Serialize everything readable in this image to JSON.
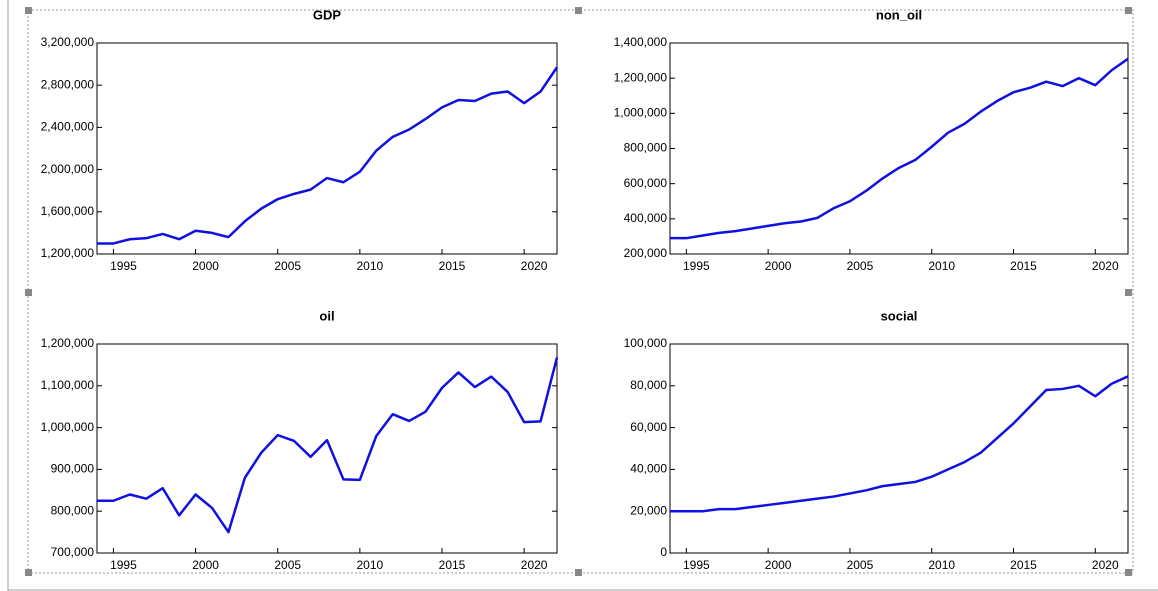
{
  "chart_data": [
    {
      "type": "line",
      "title": "GDP",
      "color": "#1010e0",
      "x": [
        1994,
        1995,
        1996,
        1997,
        1998,
        1999,
        2000,
        2001,
        2002,
        2003,
        2004,
        2005,
        2006,
        2007,
        2008,
        2009,
        2010,
        2011,
        2012,
        2013,
        2014,
        2015,
        2016,
        2017,
        2018,
        2019,
        2020,
        2021,
        2022
      ],
      "values": [
        1300000,
        1300000,
        1340000,
        1350000,
        1390000,
        1340000,
        1420000,
        1400000,
        1360000,
        1510000,
        1630000,
        1720000,
        1770000,
        1810000,
        1920000,
        1880000,
        1980000,
        2180000,
        2310000,
        2380000,
        2480000,
        2590000,
        2660000,
        2650000,
        2720000,
        2740000,
        2630000,
        2740000,
        2970000
      ],
      "xlim": [
        1994,
        2022
      ],
      "xticks": [
        1995,
        2000,
        2005,
        2010,
        2015,
        2020
      ],
      "ylim": [
        1200000,
        3200000
      ],
      "yticks": [
        {
          "value": 1200000,
          "label": "1,200,000"
        },
        {
          "value": 1600000,
          "label": "1,600,000"
        },
        {
          "value": 2000000,
          "label": "2,000,000"
        },
        {
          "value": 2400000,
          "label": "2,400,000"
        },
        {
          "value": 2800000,
          "label": "2,800,000"
        },
        {
          "value": 3200000,
          "label": "3,200,000"
        }
      ]
    },
    {
      "type": "line",
      "title": "non_oil",
      "color": "#1010e0",
      "x": [
        1994,
        1995,
        1996,
        1997,
        1998,
        1999,
        2000,
        2001,
        2002,
        2003,
        2004,
        2005,
        2006,
        2007,
        2008,
        2009,
        2010,
        2011,
        2012,
        2013,
        2014,
        2015,
        2016,
        2017,
        2018,
        2019,
        2020,
        2021,
        2022
      ],
      "values": [
        290000,
        290000,
        305000,
        320000,
        330000,
        345000,
        360000,
        375000,
        385000,
        405000,
        460000,
        500000,
        560000,
        630000,
        690000,
        735000,
        810000,
        890000,
        940000,
        1010000,
        1070000,
        1120000,
        1145000,
        1180000,
        1155000,
        1200000,
        1160000,
        1245000,
        1310000
      ],
      "xlim": [
        1994,
        2022
      ],
      "xticks": [
        1995,
        2000,
        2005,
        2010,
        2015,
        2020
      ],
      "ylim": [
        200000,
        1400000
      ],
      "yticks": [
        {
          "value": 200000,
          "label": "200,000"
        },
        {
          "value": 400000,
          "label": "400,000"
        },
        {
          "value": 600000,
          "label": "600,000"
        },
        {
          "value": 800000,
          "label": "800,000"
        },
        {
          "value": 1000000,
          "label": "1,000,000"
        },
        {
          "value": 1200000,
          "label": "1,200,000"
        },
        {
          "value": 1400000,
          "label": "1,400,000"
        }
      ]
    },
    {
      "type": "line",
      "title": "oil",
      "color": "#1010e0",
      "x": [
        1994,
        1995,
        1996,
        1997,
        1998,
        1999,
        2000,
        2001,
        2002,
        2003,
        2004,
        2005,
        2006,
        2007,
        2008,
        2009,
        2010,
        2011,
        2012,
        2013,
        2014,
        2015,
        2016,
        2017,
        2018,
        2019,
        2020,
        2021,
        2022
      ],
      "values": [
        825000,
        825000,
        840000,
        830000,
        855000,
        790000,
        840000,
        808000,
        750000,
        880000,
        940000,
        982000,
        968000,
        930000,
        970000,
        876000,
        875000,
        980000,
        1032000,
        1016000,
        1038000,
        1095000,
        1132000,
        1097000,
        1122000,
        1085000,
        1013000,
        1015000,
        1168000
      ],
      "xlim": [
        1994,
        2022
      ],
      "xticks": [
        1995,
        2000,
        2005,
        2010,
        2015,
        2020
      ],
      "ylim": [
        700000,
        1200000
      ],
      "yticks": [
        {
          "value": 700000,
          "label": "700,000"
        },
        {
          "value": 800000,
          "label": "800,000"
        },
        {
          "value": 900000,
          "label": "900,000"
        },
        {
          "value": 1000000,
          "label": "1,000,000"
        },
        {
          "value": 1100000,
          "label": "1,100,000"
        },
        {
          "value": 1200000,
          "label": "1,200,000"
        }
      ]
    },
    {
      "type": "line",
      "title": "social",
      "color": "#1010e0",
      "x": [
        1994,
        1995,
        1996,
        1997,
        1998,
        1999,
        2000,
        2001,
        2002,
        2003,
        2004,
        2005,
        2006,
        2007,
        2008,
        2009,
        2010,
        2011,
        2012,
        2013,
        2014,
        2015,
        2016,
        2017,
        2018,
        2019,
        2020,
        2021,
        2022
      ],
      "values": [
        20000,
        20000,
        20000,
        21000,
        21000,
        22000,
        23000,
        24000,
        25000,
        26000,
        27000,
        28500,
        30000,
        32000,
        33000,
        34000,
        36500,
        40000,
        43500,
        48000,
        55000,
        62000,
        70000,
        78000,
        78500,
        80000,
        75000,
        81000,
        84500
      ],
      "xlim": [
        1994,
        2022
      ],
      "xticks": [
        1995,
        2000,
        2005,
        2010,
        2015,
        2020
      ],
      "ylim": [
        0,
        100000
      ],
      "yticks": [
        0,
        {
          "value": 20000,
          "label": "20,000"
        },
        {
          "value": 40000,
          "label": "40,000"
        },
        {
          "value": 60000,
          "label": "60,000"
        },
        {
          "value": 80000,
          "label": "80,000"
        },
        {
          "value": 100000,
          "label": "100,000"
        }
      ]
    }
  ]
}
